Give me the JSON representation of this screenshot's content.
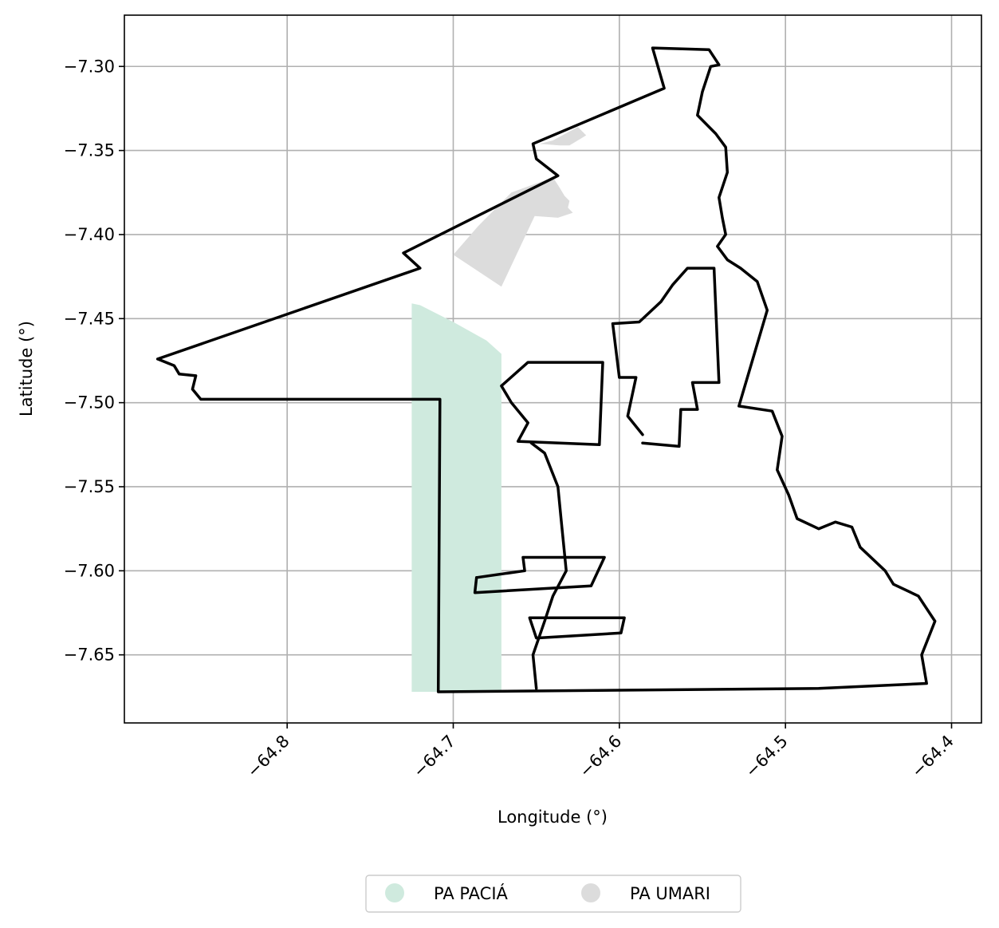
{
  "chart_data": {
    "type": "map",
    "xlabel": "Longitude (°)",
    "ylabel": "Latitude (°)",
    "xlim": [
      -64.898,
      -64.382
    ],
    "ylim": [
      -7.6905,
      -7.2695
    ],
    "xticks": [
      {
        "value": -64.8,
        "label": "−64.8"
      },
      {
        "value": -64.7,
        "label": "−64.7"
      },
      {
        "value": -64.6,
        "label": "−64.6"
      },
      {
        "value": -64.5,
        "label": "−64.5"
      },
      {
        "value": -64.4,
        "label": "−64.4"
      }
    ],
    "yticks": [
      {
        "value": -7.3,
        "label": "−7.30"
      },
      {
        "value": -7.35,
        "label": "−7.35"
      },
      {
        "value": -7.4,
        "label": "−7.40"
      },
      {
        "value": -7.45,
        "label": "−7.45"
      },
      {
        "value": -7.5,
        "label": "−7.50"
      },
      {
        "value": -7.55,
        "label": "−7.55"
      },
      {
        "value": -7.6,
        "label": "−7.60"
      },
      {
        "value": -7.65,
        "label": "−7.65"
      }
    ],
    "grid": true,
    "legend": {
      "placement": "bottom-center",
      "entries": [
        {
          "label": "PA PACIÁ",
          "color": "#cfeade"
        },
        {
          "label": "PA UMARI",
          "color": "#dcdcdc"
        }
      ]
    },
    "series": [
      {
        "label": "PA PACIÁ",
        "color": "#cfeade",
        "type": "fill",
        "coords": [
          [
            -64.725,
            -7.441
          ],
          [
            -64.72,
            -7.442
          ],
          [
            -64.7,
            -7.452
          ],
          [
            -64.68,
            -7.463
          ],
          [
            -64.671,
            -7.471
          ],
          [
            -64.671,
            -7.672
          ],
          [
            -64.725,
            -7.672
          ]
        ]
      },
      {
        "label": "PA UMARI",
        "color": "#dcdcdc",
        "type": "fill",
        "coords": [
          [
            -64.7,
            -7.412
          ],
          [
            -64.685,
            -7.395
          ],
          [
            -64.675,
            -7.385
          ],
          [
            -64.665,
            -7.375
          ],
          [
            -64.64,
            -7.366
          ],
          [
            -64.636,
            -7.372
          ],
          [
            -64.633,
            -7.377
          ],
          [
            -64.63,
            -7.38
          ],
          [
            -64.631,
            -7.384
          ],
          [
            -64.628,
            -7.387
          ],
          [
            -64.637,
            -7.39
          ],
          [
            -64.651,
            -7.389
          ],
          [
            -64.671,
            -7.431
          ]
        ]
      },
      {
        "label": "PA UMARI",
        "color": "#dcdcdc",
        "type": "fill",
        "coords": [
          [
            -64.648,
            -7.346
          ],
          [
            -64.64,
            -7.344
          ],
          [
            -64.625,
            -7.336
          ],
          [
            -64.62,
            -7.341
          ],
          [
            -64.63,
            -7.347
          ],
          [
            -64.636,
            -7.347
          ]
        ]
      },
      {
        "type": "outline",
        "color": "#000000",
        "coords": [
          [
            -64.878,
            -7.474
          ],
          [
            -64.868,
            -7.478
          ],
          [
            -64.865,
            -7.483
          ],
          [
            -64.855,
            -7.484
          ],
          [
            -64.857,
            -7.492
          ],
          [
            -64.852,
            -7.498
          ],
          [
            -64.708,
            -7.498
          ],
          [
            -64.709,
            -7.672
          ],
          [
            -64.48,
            -7.67
          ],
          [
            -64.415,
            -7.667
          ],
          [
            -64.418,
            -7.65
          ],
          [
            -64.41,
            -7.63
          ],
          [
            -64.42,
            -7.615
          ],
          [
            -64.435,
            -7.608
          ],
          [
            -64.44,
            -7.6
          ],
          [
            -64.455,
            -7.586
          ],
          [
            -64.46,
            -7.574
          ],
          [
            -64.47,
            -7.571
          ],
          [
            -64.48,
            -7.575
          ],
          [
            -64.493,
            -7.569
          ],
          [
            -64.498,
            -7.555
          ],
          [
            -64.505,
            -7.54
          ],
          [
            -64.502,
            -7.52
          ],
          [
            -64.508,
            -7.505
          ],
          [
            -64.528,
            -7.502
          ],
          [
            -64.511,
            -7.445
          ],
          [
            -64.517,
            -7.428
          ],
          [
            -64.527,
            -7.42
          ],
          [
            -64.535,
            -7.415
          ],
          [
            -64.541,
            -7.407
          ],
          [
            -64.536,
            -7.4
          ],
          [
            -64.538,
            -7.39
          ],
          [
            -64.54,
            -7.378
          ],
          [
            -64.535,
            -7.363
          ],
          [
            -64.536,
            -7.348
          ],
          [
            -64.542,
            -7.34
          ],
          [
            -64.553,
            -7.329
          ],
          [
            -64.55,
            -7.315
          ],
          [
            -64.545,
            -7.3
          ],
          [
            -64.54,
            -7.299
          ],
          [
            -64.546,
            -7.29
          ],
          [
            -64.58,
            -7.289
          ],
          [
            -64.573,
            -7.313
          ],
          [
            -64.652,
            -7.346
          ],
          [
            -64.65,
            -7.355
          ],
          [
            -64.637,
            -7.365
          ],
          [
            -64.73,
            -7.411
          ],
          [
            -64.72,
            -7.42
          ],
          [
            -64.878,
            -7.474
          ]
        ]
      },
      {
        "type": "outline",
        "color": "#000000",
        "coords": [
          [
            -64.671,
            -7.49
          ],
          [
            -64.655,
            -7.476
          ],
          [
            -64.61,
            -7.476
          ],
          [
            -64.612,
            -7.525
          ],
          [
            -64.661,
            -7.523
          ],
          [
            -64.655,
            -7.512
          ],
          [
            -64.665,
            -7.5
          ],
          [
            -64.671,
            -7.49
          ]
        ]
      },
      {
        "type": "outline",
        "color": "#000000",
        "coords": [
          [
            -64.586,
            -7.519
          ],
          [
            -64.595,
            -7.508
          ],
          [
            -64.59,
            -7.485
          ],
          [
            -64.6,
            -7.485
          ],
          [
            -64.604,
            -7.453
          ],
          [
            -64.588,
            -7.452
          ],
          [
            -64.575,
            -7.44
          ],
          [
            -64.568,
            -7.43
          ],
          [
            -64.559,
            -7.42
          ],
          [
            -64.543,
            -7.42
          ],
          [
            -64.54,
            -7.488
          ],
          [
            -64.556,
            -7.488
          ],
          [
            -64.553,
            -7.504
          ],
          [
            -64.563,
            -7.504
          ],
          [
            -64.564,
            -7.526
          ],
          [
            -64.586,
            -7.524
          ]
        ]
      },
      {
        "type": "outline",
        "color": "#000000",
        "coords": [
          [
            -64.686,
            -7.604
          ],
          [
            -64.657,
            -7.6
          ],
          [
            -64.658,
            -7.592
          ],
          [
            -64.609,
            -7.592
          ],
          [
            -64.617,
            -7.609
          ],
          [
            -64.687,
            -7.613
          ],
          [
            -64.686,
            -7.604
          ]
        ]
      },
      {
        "type": "outline",
        "color": "#000000",
        "coords": [
          [
            -64.654,
            -7.628
          ],
          [
            -64.597,
            -7.628
          ],
          [
            -64.599,
            -7.637
          ],
          [
            -64.65,
            -7.64
          ],
          [
            -64.654,
            -7.628
          ]
        ]
      },
      {
        "type": "outline",
        "color": "#000000",
        "coords": [
          [
            -64.653,
            -7.524
          ],
          [
            -64.645,
            -7.53
          ],
          [
            -64.637,
            -7.55
          ],
          [
            -64.635,
            -7.57
          ],
          [
            -64.632,
            -7.6
          ],
          [
            -64.64,
            -7.615
          ],
          [
            -64.645,
            -7.63
          ],
          [
            -64.652,
            -7.65
          ],
          [
            -64.65,
            -7.67
          ]
        ]
      }
    ]
  }
}
